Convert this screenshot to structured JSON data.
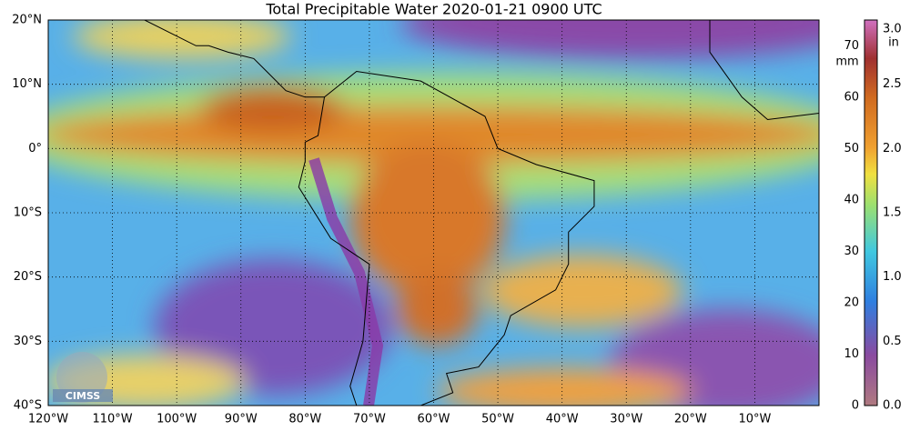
{
  "title": "Total Precipitable Water  2020-01-21 0900 UTC",
  "map": {
    "xlim": [
      -120,
      0
    ],
    "ylim": [
      -40,
      20
    ],
    "xticks": [
      {
        "value": -120,
        "label": "120°W"
      },
      {
        "value": -110,
        "label": "110°W"
      },
      {
        "value": -100,
        "label": "100°W"
      },
      {
        "value": -90,
        "label": "90°W"
      },
      {
        "value": -80,
        "label": "80°W"
      },
      {
        "value": -70,
        "label": "70°W"
      },
      {
        "value": -60,
        "label": "60°W"
      },
      {
        "value": -50,
        "label": "50°W"
      },
      {
        "value": -40,
        "label": "40°W"
      },
      {
        "value": -30,
        "label": "30°W"
      },
      {
        "value": -20,
        "label": "20°W"
      },
      {
        "value": -10,
        "label": "10°W"
      }
    ],
    "yticks": [
      {
        "value": 20,
        "label": "20°N"
      },
      {
        "value": 10,
        "label": "10°N"
      },
      {
        "value": 0,
        "label": "0°"
      },
      {
        "value": -10,
        "label": "10°S"
      },
      {
        "value": -20,
        "label": "20°S"
      },
      {
        "value": -30,
        "label": "30°S"
      },
      {
        "value": -40,
        "label": "40°S"
      }
    ]
  },
  "colorbar": {
    "mm": {
      "unit": "mm",
      "lim": [
        0,
        75
      ],
      "ticks": [
        0,
        10,
        20,
        30,
        40,
        50,
        60,
        70
      ]
    },
    "in": {
      "unit": "in",
      "lim": [
        0,
        3
      ],
      "ticks": [
        {
          "value": 0,
          "label": "0.0"
        },
        0.5,
        {
          "value": 1,
          "label": "1.0"
        },
        1.5,
        {
          "value": 2,
          "label": "2.0"
        },
        2.5,
        {
          "value": 3,
          "label": "3.0"
        }
      ]
    }
  },
  "logo": "CIMSS"
}
